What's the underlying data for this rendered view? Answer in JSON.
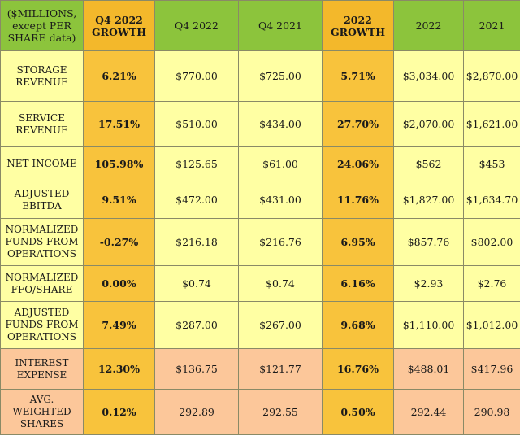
{
  "table": {
    "header": {
      "label": "($MILLIONS, except PER SHARE data)",
      "columns": [
        "Q4 2022 GROWTH",
        "Q4 2022",
        "Q4 2021",
        "2022 GROWTH",
        "2022",
        "2021"
      ]
    },
    "rows": [
      {
        "label": "STORAGE REVENUE",
        "cells": [
          "6.21%",
          "$770.00",
          "$725.00",
          "5.71%",
          "$3,034.00",
          "$2,870.00"
        ]
      },
      {
        "label": "SERVICE REVENUE",
        "cells": [
          "17.51%",
          "$510.00",
          "$434.00",
          "27.70%",
          "$2,070.00",
          "$1,621.00"
        ]
      },
      {
        "label": "NET INCOME",
        "cells": [
          "105.98%",
          "$125.65",
          "$61.00",
          "24.06%",
          "$562",
          "$453"
        ]
      },
      {
        "label": "ADJUSTED EBITDA",
        "cells": [
          "9.51%",
          "$472.00",
          "$431.00",
          "11.76%",
          "$1,827.00",
          "$1,634.70"
        ]
      },
      {
        "label": "NORMALIZED FUNDS FROM OPERATIONS",
        "cells": [
          "-0.27%",
          "$216.18",
          "$216.76",
          "6.95%",
          "$857.76",
          "$802.00"
        ]
      },
      {
        "label": "NORMALIZED FFO/SHARE",
        "cells": [
          "0.00%",
          "$0.74",
          "$0.74",
          "6.16%",
          "$2.93",
          "$2.76"
        ]
      },
      {
        "label": "ADJUSTED FUNDS FROM OPERATIONS",
        "cells": [
          "7.49%",
          "$287.00",
          "$267.00",
          "9.68%",
          "$1,110.00",
          "$1,012.00"
        ]
      },
      {
        "label": "INTEREST EXPENSE",
        "cells": [
          "12.30%",
          "$136.75",
          "$121.77",
          "16.76%",
          "$488.01",
          "$417.96"
        ]
      },
      {
        "label": "AVG. WEIGHTED SHARES",
        "cells": [
          "0.12%",
          "292.89",
          "292.55",
          "0.50%",
          "292.44",
          "290.98"
        ]
      }
    ],
    "colors": {
      "header_green": "#8cc43c",
      "growth_orange": "#f8c33c",
      "body_yellow": "#ffffa3",
      "expense_peach": "#fcc79a"
    }
  }
}
